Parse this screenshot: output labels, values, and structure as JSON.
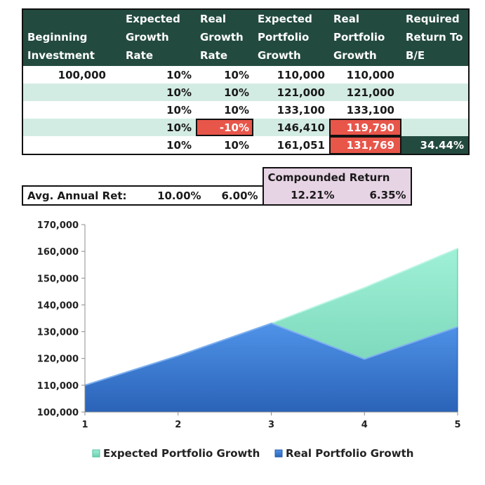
{
  "table": {
    "headers": [
      [
        "",
        "Beginning",
        "Investment"
      ],
      [
        "Expected",
        "Growth",
        "Rate"
      ],
      [
        "Real",
        "Growth",
        "Rate"
      ],
      [
        "Expected",
        "Portfolio",
        "Growth"
      ],
      [
        "Real",
        "Portfolio",
        "Growth"
      ],
      [
        "Required",
        "Return To",
        "B/E"
      ]
    ],
    "rows": [
      [
        "100,000",
        "10%",
        "10%",
        "110,000",
        "110,000",
        ""
      ],
      [
        "",
        "10%",
        "10%",
        "121,000",
        "121,000",
        ""
      ],
      [
        "",
        "10%",
        "10%",
        "133,100",
        "133,100",
        ""
      ],
      [
        "",
        "10%",
        "-10%",
        "146,410",
        "119,790",
        ""
      ],
      [
        "",
        "10%",
        "10%",
        "161,051",
        "131,769",
        "34.44%"
      ]
    ],
    "colors": {
      "header": "#234a3f",
      "band": "#d3ece3",
      "alert": "#e8564a",
      "compounded": "#e6d3e4"
    }
  },
  "summary": {
    "compounded_label": "Compounded Return",
    "label": "Avg. Annual Ret:",
    "avg_expected": "10.00%",
    "avg_real": "6.00%",
    "compounded_expected": "12.21%",
    "compounded_real": "6.35%"
  },
  "chart_data": {
    "type": "area",
    "x": [
      1,
      2,
      3,
      4,
      5
    ],
    "series": [
      {
        "name": "Expected Portfolio Growth",
        "values": [
          110000,
          121000,
          133100,
          146410,
          161051
        ],
        "color": "#7fdcc0"
      },
      {
        "name": "Real Portfolio Growth",
        "values": [
          110000,
          121000,
          133100,
          119790,
          131769
        ],
        "color": "#3f7fd6"
      }
    ],
    "ylim": [
      100000,
      170000
    ],
    "yticks": [
      "100,000",
      "110,000",
      "120,000",
      "130,000",
      "140,000",
      "150,000",
      "160,000",
      "170,000"
    ],
    "xticks": [
      "1",
      "2",
      "3",
      "4",
      "5"
    ],
    "grid": false,
    "legend": "bottom"
  }
}
